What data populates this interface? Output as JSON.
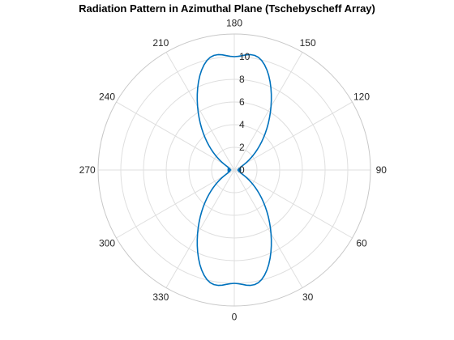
{
  "chart_data": {
    "type": "line",
    "polar": true,
    "title": "Radiation Pattern in Azimuthal Plane (Tschebyscheff Array)",
    "theta_zero_location": "bottom",
    "theta_direction": "counterclockwise",
    "theta_ticks": [
      0,
      30,
      60,
      90,
      120,
      150,
      180,
      210,
      240,
      270,
      300,
      330
    ],
    "r_ticks": [
      0,
      2,
      4,
      6,
      8,
      10
    ],
    "rlim": [
      0,
      12
    ],
    "grid": true,
    "series": [
      {
        "color": "#0072bd",
        "theta_deg": [
          0,
          2,
          4,
          6,
          8,
          10,
          12,
          14,
          16,
          18,
          20,
          22,
          24,
          26,
          28,
          30,
          32,
          34,
          36,
          38,
          40,
          42,
          44,
          46,
          48,
          50,
          52,
          54,
          56,
          58,
          60,
          62,
          64,
          66,
          68,
          70,
          72,
          74,
          76,
          78,
          80,
          82,
          84,
          86,
          88,
          90,
          92,
          94,
          96,
          98,
          100,
          102,
          104,
          106,
          108,
          110,
          112,
          114,
          116,
          118,
          120,
          122,
          124,
          126,
          128,
          130,
          132,
          134,
          136,
          138,
          140,
          142,
          144,
          146,
          148,
          150,
          152,
          154,
          156,
          158,
          160,
          162,
          164,
          166,
          168,
          170,
          172,
          174,
          176,
          178,
          180,
          182,
          184,
          186,
          188,
          190,
          192,
          194,
          196,
          198,
          200,
          202,
          204,
          206,
          208,
          210,
          212,
          214,
          216,
          218,
          220,
          222,
          224,
          226,
          228,
          230,
          232,
          234,
          236,
          238,
          240,
          242,
          244,
          246,
          248,
          250,
          252,
          254,
          256,
          258,
          260,
          262,
          264,
          266,
          268,
          270,
          272,
          274,
          276,
          278,
          280,
          282,
          284,
          286,
          288,
          290,
          292,
          294,
          296,
          298,
          300,
          302,
          304,
          306,
          308,
          310,
          312,
          314,
          316,
          318,
          320,
          322,
          324,
          326,
          328,
          330,
          332,
          334,
          336,
          338,
          340,
          342,
          344,
          346,
          348,
          350,
          352,
          354,
          356,
          358,
          360
        ],
        "r": [
          10.0,
          10.04,
          10.12,
          10.22,
          10.28,
          10.27,
          10.17,
          9.96,
          9.66,
          9.29,
          8.87,
          8.41,
          7.93,
          7.44,
          6.95,
          6.47,
          6.0,
          5.54,
          5.1,
          4.67,
          4.26,
          3.86,
          3.48,
          3.11,
          2.76,
          2.43,
          2.11,
          1.81,
          1.53,
          1.28,
          1.05,
          0.85,
          0.7,
          0.62,
          0.6,
          0.55,
          0.45,
          0.4,
          0.48,
          0.55,
          0.5,
          0.4,
          0.35,
          0.45,
          0.55,
          0.3,
          0.55,
          0.45,
          0.35,
          0.4,
          0.5,
          0.55,
          0.48,
          0.4,
          0.45,
          0.55,
          0.6,
          0.62,
          0.7,
          0.85,
          1.05,
          1.28,
          1.53,
          1.81,
          2.11,
          2.43,
          2.76,
          3.11,
          3.48,
          3.86,
          4.26,
          4.67,
          5.1,
          5.54,
          6.0,
          6.47,
          6.95,
          7.44,
          7.93,
          8.41,
          8.87,
          9.29,
          9.66,
          9.96,
          10.17,
          10.27,
          10.28,
          10.22,
          10.12,
          10.04,
          10.0,
          10.04,
          10.12,
          10.22,
          10.28,
          10.27,
          10.17,
          9.96,
          9.66,
          9.29,
          8.87,
          8.41,
          7.93,
          7.44,
          6.95,
          6.47,
          6.0,
          5.54,
          5.1,
          4.67,
          4.26,
          3.86,
          3.48,
          3.11,
          2.76,
          2.43,
          2.11,
          1.81,
          1.53,
          1.28,
          1.05,
          0.85,
          0.7,
          0.62,
          0.6,
          0.55,
          0.45,
          0.4,
          0.48,
          0.55,
          0.5,
          0.4,
          0.35,
          0.45,
          0.55,
          0.3,
          0.55,
          0.45,
          0.35,
          0.4,
          0.5,
          0.55,
          0.48,
          0.4,
          0.45,
          0.55,
          0.6,
          0.62,
          0.7,
          0.85,
          1.05,
          1.28,
          1.53,
          1.81,
          2.11,
          2.43,
          2.76,
          3.11,
          3.48,
          3.86,
          4.26,
          4.67,
          5.1,
          5.54,
          6.0,
          6.47,
          6.95,
          7.44,
          7.93,
          8.41,
          8.87,
          9.29,
          9.66,
          9.96,
          10.17,
          10.27,
          10.28,
          10.22,
          10.12,
          10.04,
          10.0
        ]
      }
    ]
  }
}
